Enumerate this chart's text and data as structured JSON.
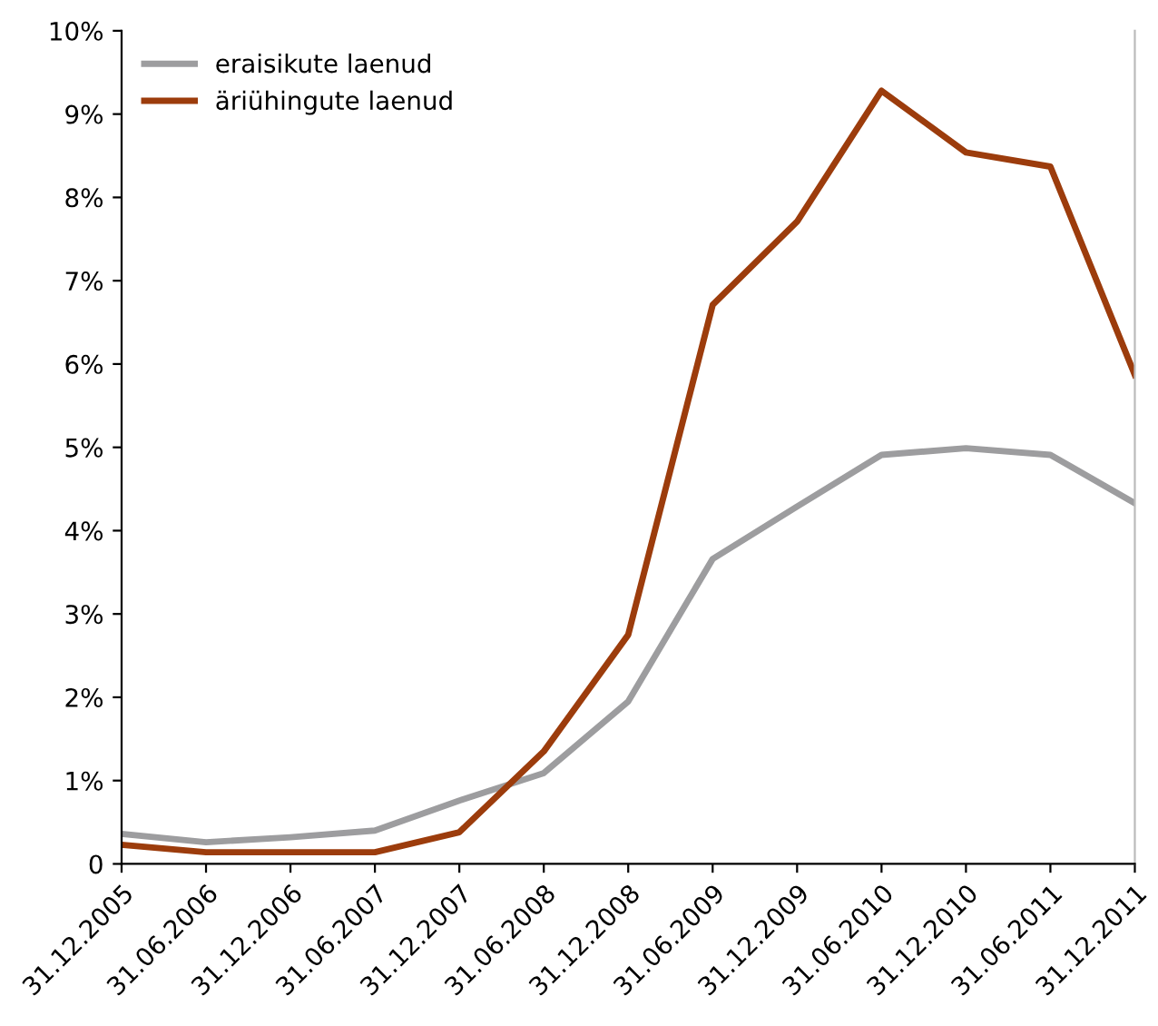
{
  "chart_data": {
    "type": "line",
    "categories": [
      "31.12.2005",
      "31.06.2006",
      "31.12.2006",
      "31.06.2007",
      "31.12.2007",
      "31.06.2008",
      "31.12.2008",
      "31.06.2009",
      "31.12.2009",
      "31.06.2010",
      "31.12.2010",
      "31.06.2011",
      "31.12.2011"
    ],
    "series": [
      {
        "name": "eraisikute laenud",
        "color": "#9d9d9f",
        "values": [
          0.36,
          0.26,
          0.32,
          0.4,
          0.76,
          1.09,
          1.95,
          3.66,
          4.29,
          4.91,
          4.99,
          4.91,
          4.33
        ]
      },
      {
        "name": "äriühingute laenud",
        "color": "#9c3c0c",
        "values": [
          0.23,
          0.14,
          0.14,
          0.14,
          0.38,
          1.35,
          2.75,
          6.71,
          7.71,
          9.28,
          8.54,
          8.37,
          5.87
        ]
      }
    ],
    "ylim": [
      0,
      10
    ],
    "yticks": [
      {
        "value": 0,
        "label": "0"
      },
      {
        "value": 1,
        "label": "1%"
      },
      {
        "value": 2,
        "label": "2%"
      },
      {
        "value": 3,
        "label": "3%"
      },
      {
        "value": 4,
        "label": "4%"
      },
      {
        "value": 5,
        "label": "5%"
      },
      {
        "value": 6,
        "label": "6%"
      },
      {
        "value": 7,
        "label": "7%"
      },
      {
        "value": 8,
        "label": "8%"
      },
      {
        "value": 9,
        "label": "9%"
      },
      {
        "value": 10,
        "label": "10%"
      }
    ],
    "grid": false,
    "legend": "top left",
    "marker": "none",
    "line_style": "solid"
  }
}
